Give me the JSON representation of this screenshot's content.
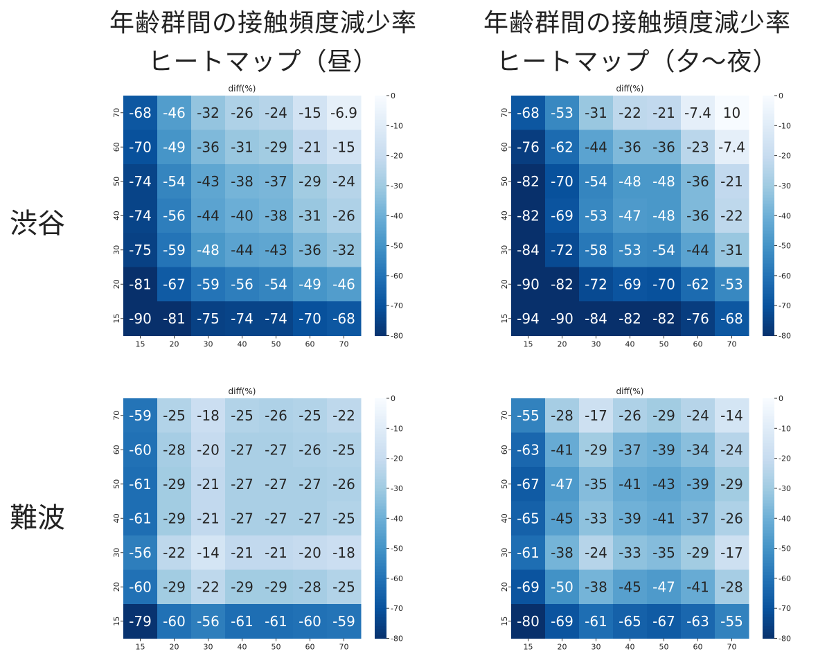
{
  "column_titles": [
    {
      "line1": "年齢群間の接触頻度減少率",
      "line2": "ヒートマップ（昼）"
    },
    {
      "line1": "年齢群間の接触頻度減少率",
      "line2": "ヒートマップ（夕〜夜）"
    }
  ],
  "row_labels": [
    "渋谷",
    "難波"
  ],
  "chart_data": [
    {
      "type": "heatmap",
      "title": "diff(%)",
      "x_categories": [
        "15",
        "20",
        "30",
        "40",
        "50",
        "60",
        "70"
      ],
      "y_categories": [
        "70",
        "60",
        "50",
        "40",
        "30",
        "20",
        "15"
      ],
      "values": [
        [
          "-68",
          "-46",
          "-32",
          "-26",
          "-24",
          "-15",
          "-6.9"
        ],
        [
          "-70",
          "-49",
          "-36",
          "-31",
          "-29",
          "-21",
          "-15"
        ],
        [
          "-74",
          "-54",
          "-43",
          "-38",
          "-37",
          "-29",
          "-24"
        ],
        [
          "-74",
          "-56",
          "-44",
          "-40",
          "-38",
          "-31",
          "-26"
        ],
        [
          "-75",
          "-59",
          "-48",
          "-44",
          "-43",
          "-36",
          "-32"
        ],
        [
          "-81",
          "-67",
          "-59",
          "-56",
          "-54",
          "-49",
          "-46"
        ],
        [
          "-90",
          "-81",
          "-75",
          "-74",
          "-74",
          "-70",
          "-68"
        ]
      ],
      "colorbar": {
        "min": -80,
        "max": 0,
        "ticks": [
          "0",
          "-10",
          "-20",
          "-30",
          "-40",
          "-50",
          "-60",
          "-70",
          "-80"
        ],
        "colormap": "Blues_r"
      }
    },
    {
      "type": "heatmap",
      "title": "diff(%)",
      "x_categories": [
        "15",
        "20",
        "30",
        "40",
        "50",
        "60",
        "70"
      ],
      "y_categories": [
        "70",
        "60",
        "50",
        "40",
        "30",
        "20",
        "15"
      ],
      "values": [
        [
          "-68",
          "-53",
          "-31",
          "-22",
          "-21",
          "-7.4",
          "10"
        ],
        [
          "-76",
          "-62",
          "-44",
          "-36",
          "-36",
          "-23",
          "-7.4"
        ],
        [
          "-82",
          "-70",
          "-54",
          "-48",
          "-48",
          "-36",
          "-21"
        ],
        [
          "-82",
          "-69",
          "-53",
          "-47",
          "-48",
          "-36",
          "-22"
        ],
        [
          "-84",
          "-72",
          "-58",
          "-53",
          "-54",
          "-44",
          "-31"
        ],
        [
          "-90",
          "-82",
          "-72",
          "-69",
          "-70",
          "-62",
          "-53"
        ],
        [
          "-94",
          "-90",
          "-84",
          "-82",
          "-82",
          "-76",
          "-68"
        ]
      ],
      "colorbar": {
        "min": -80,
        "max": 0,
        "ticks": [
          "0",
          "-10",
          "-20",
          "-30",
          "-40",
          "-50",
          "-60",
          "-70",
          "-80"
        ],
        "colormap": "Blues_r"
      }
    },
    {
      "type": "heatmap",
      "title": "diff(%)",
      "x_categories": [
        "15",
        "20",
        "30",
        "40",
        "50",
        "60",
        "70"
      ],
      "y_categories": [
        "70",
        "60",
        "50",
        "40",
        "30",
        "20",
        "15"
      ],
      "values": [
        [
          "-59",
          "-25",
          "-18",
          "-25",
          "-26",
          "-25",
          "-22"
        ],
        [
          "-60",
          "-28",
          "-20",
          "-27",
          "-27",
          "-26",
          "-25"
        ],
        [
          "-61",
          "-29",
          "-21",
          "-27",
          "-27",
          "-27",
          "-26"
        ],
        [
          "-61",
          "-29",
          "-21",
          "-27",
          "-27",
          "-27",
          "-25"
        ],
        [
          "-56",
          "-22",
          "-14",
          "-21",
          "-21",
          "-20",
          "-18"
        ],
        [
          "-60",
          "-29",
          "-22",
          "-29",
          "-29",
          "-28",
          "-25"
        ],
        [
          "-79",
          "-60",
          "-56",
          "-61",
          "-61",
          "-60",
          "-59"
        ]
      ],
      "colorbar": {
        "min": -80,
        "max": 0,
        "ticks": [
          "0",
          "-10",
          "-20",
          "-30",
          "-40",
          "-50",
          "-60",
          "-70",
          "-80"
        ],
        "colormap": "Blues_r"
      }
    },
    {
      "type": "heatmap",
      "title": "diff(%)",
      "x_categories": [
        "15",
        "20",
        "30",
        "40",
        "50",
        "60",
        "70"
      ],
      "y_categories": [
        "70",
        "60",
        "50",
        "40",
        "30",
        "20",
        "15"
      ],
      "values": [
        [
          "-55",
          "-28",
          "-17",
          "-26",
          "-29",
          "-24",
          "-14"
        ],
        [
          "-63",
          "-41",
          "-29",
          "-37",
          "-39",
          "-34",
          "-24"
        ],
        [
          "-67",
          "-47",
          "-35",
          "-41",
          "-43",
          "-39",
          "-29"
        ],
        [
          "-65",
          "-45",
          "-33",
          "-39",
          "-41",
          "-37",
          "-26"
        ],
        [
          "-61",
          "-38",
          "-24",
          "-33",
          "-35",
          "-29",
          "-17"
        ],
        [
          "-69",
          "-50",
          "-38",
          "-45",
          "-47",
          "-41",
          "-28"
        ],
        [
          "-80",
          "-69",
          "-61",
          "-65",
          "-67",
          "-63",
          "-55"
        ]
      ],
      "colorbar": {
        "min": -80,
        "max": 0,
        "ticks": [
          "0",
          "-10",
          "-20",
          "-30",
          "-40",
          "-50",
          "-60",
          "-70",
          "-80"
        ],
        "colormap": "Blues_r"
      }
    }
  ]
}
